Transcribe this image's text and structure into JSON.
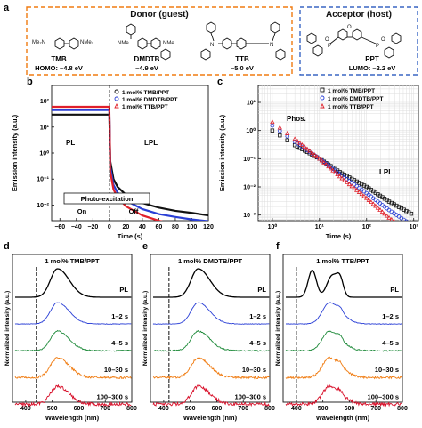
{
  "panel_a": {
    "letter": "a",
    "donor_title": "Donor (guest)",
    "acceptor_title": "Acceptor (host)",
    "molecules": [
      {
        "name": "TMB",
        "energy": "HOMO: –4.8 eV"
      },
      {
        "name": "DMDTB",
        "energy": "–4.9 eV"
      },
      {
        "name": "TTB",
        "energy": "–5.0 eV"
      },
      {
        "name": "PPT",
        "energy": "LUMO: –2.2 eV"
      }
    ],
    "atoms": {
      "nme2": "NMe₂",
      "nme": "NMe",
      "me2n": "Me₂N",
      "o": "O",
      "p": "P"
    }
  },
  "panel_b": {
    "letter": "b",
    "ylabel": "Emission intensity (a.u.)",
    "xlabel": "Time (s)",
    "xticks": [
      "−60",
      "−40",
      "−20",
      "0",
      "20",
      "40",
      "60",
      "80",
      "100",
      "120"
    ],
    "yticks": [
      "10²",
      "10¹",
      "10⁰",
      "10⁻¹",
      "10⁻²"
    ],
    "legend": [
      "1 mol% TMB/PPT",
      "1 mol% DMDTB/PPT",
      "1 mol% TTB/PPT"
    ],
    "region_labels": {
      "pl": "PL",
      "lpl": "LPL",
      "photo": "Photo-excitation",
      "on": "On",
      "off": "Off"
    }
  },
  "panel_c": {
    "letter": "c",
    "ylabel": "Emission intensity (a.u.)",
    "xlabel": "Time (s)",
    "xticks": [
      "10⁰",
      "10¹",
      "10²",
      "10³"
    ],
    "yticks": [
      "10¹",
      "10⁰",
      "10⁻¹",
      "10⁻²",
      "10⁻³"
    ],
    "legend": [
      "1 mol% TMB/PPT",
      "1 mol% DMDTB/PPT",
      "1 mol% TTB/PPT"
    ],
    "region_labels": {
      "phos": "Phos.",
      "lpl": "LPL"
    }
  },
  "spectra_panels": [
    {
      "letter": "d",
      "title": "1 mol% TMB/PPT",
      "xlabel": "Wavelength (nm)",
      "ylabel": "Normalized intensity (a.u.)",
      "xticks": [
        "400",
        "500",
        "600",
        "700",
        "800"
      ],
      "labels": [
        "PL",
        "1–2 s",
        "4–5 s",
        "10–30 s",
        "100–300 s"
      ]
    },
    {
      "letter": "e",
      "title": "1 mol% DMDTB/PPT",
      "xlabel": "Wavelength (nm)",
      "ylabel": "Normalized intensity (a.u.)",
      "xticks": [
        "400",
        "500",
        "600",
        "700",
        "800"
      ],
      "labels": [
        "PL",
        "1–2 s",
        "4–5 s",
        "10–30 s",
        "100–300 s"
      ]
    },
    {
      "letter": "f",
      "title": "1 mol% TTB/PPT",
      "xlabel": "Wavelength (nm)",
      "ylabel": "Normalized intensity (a.u.)",
      "xticks": [
        "400",
        "500",
        "600",
        "700",
        "800"
      ],
      "labels": [
        "PL",
        "1–2 s",
        "4–5 s",
        "10–30 s",
        "100–300 s"
      ]
    }
  ],
  "colors": {
    "tmb": "#111111",
    "dmdtb": "#2a3fd6",
    "ttb": "#e0202a",
    "pl": "#000000",
    "s1": "#2a3fd6",
    "s2": "#1e8a3a",
    "s3": "#f07b10",
    "s4": "#d8102a",
    "donor_box": "#f07b10",
    "acceptor_box": "#3a66c4"
  },
  "chart_data": [
    {
      "type": "line",
      "panel": "b",
      "xlabel": "Time (s)",
      "ylabel": "Emission intensity (a.u.)",
      "xlim": [
        -70,
        120
      ],
      "ylim_log10": [
        -2.6,
        2.6
      ],
      "log_y": true,
      "series": [
        {
          "name": "1 mol% TMB/PPT",
          "on_level": 30,
          "x": [
            1,
            5,
            10,
            20,
            40,
            60,
            80,
            100,
            120
          ],
          "y": [
            0.5,
            0.1,
            0.05,
            0.025,
            0.012,
            0.008,
            0.006,
            0.005,
            0.004
          ]
        },
        {
          "name": "1 mol% DMDTB/PPT",
          "on_level": 45,
          "x": [
            1,
            5,
            10,
            20,
            40,
            60,
            80,
            100,
            120
          ],
          "y": [
            0.3,
            0.06,
            0.03,
            0.015,
            0.007,
            0.0045,
            0.0035,
            0.0028,
            0.0024
          ]
        },
        {
          "name": "1 mol% TTB/PPT",
          "on_level": 60,
          "x": [
            1,
            5,
            10,
            20,
            40,
            60,
            80,
            100,
            120
          ],
          "y": [
            0.2,
            0.04,
            0.02,
            0.009,
            0.004,
            0.0025,
            0.0018,
            0.0015,
            0.0012
          ]
        }
      ]
    },
    {
      "type": "scatter",
      "panel": "c",
      "xlabel": "Time (s)",
      "ylabel": "Emission intensity (a.u.)",
      "xlim_log10": [
        -0.3,
        3.1
      ],
      "ylim_log10": [
        -3.2,
        1.6
      ],
      "log_x": true,
      "log_y": true,
      "series": [
        {
          "name": "1 mol% TMB/PPT",
          "x": [
            1,
            3,
            10,
            30,
            100,
            300,
            1000
          ],
          "y": [
            1.0,
            0.3,
            0.1,
            0.03,
            0.01,
            0.003,
            0.001
          ]
        },
        {
          "name": "1 mol% DMDTB/PPT",
          "x": [
            1,
            3,
            10,
            30,
            100,
            300,
            1000
          ],
          "y": [
            1.5,
            0.4,
            0.1,
            0.025,
            0.006,
            0.0015,
            0.0004
          ]
        },
        {
          "name": "1 mol% TTB/PPT",
          "x": [
            1,
            3,
            10,
            30,
            100,
            300,
            1000
          ],
          "y": [
            2.0,
            0.5,
            0.1,
            0.02,
            0.004,
            0.0008,
            0.0002
          ]
        }
      ]
    }
  ]
}
